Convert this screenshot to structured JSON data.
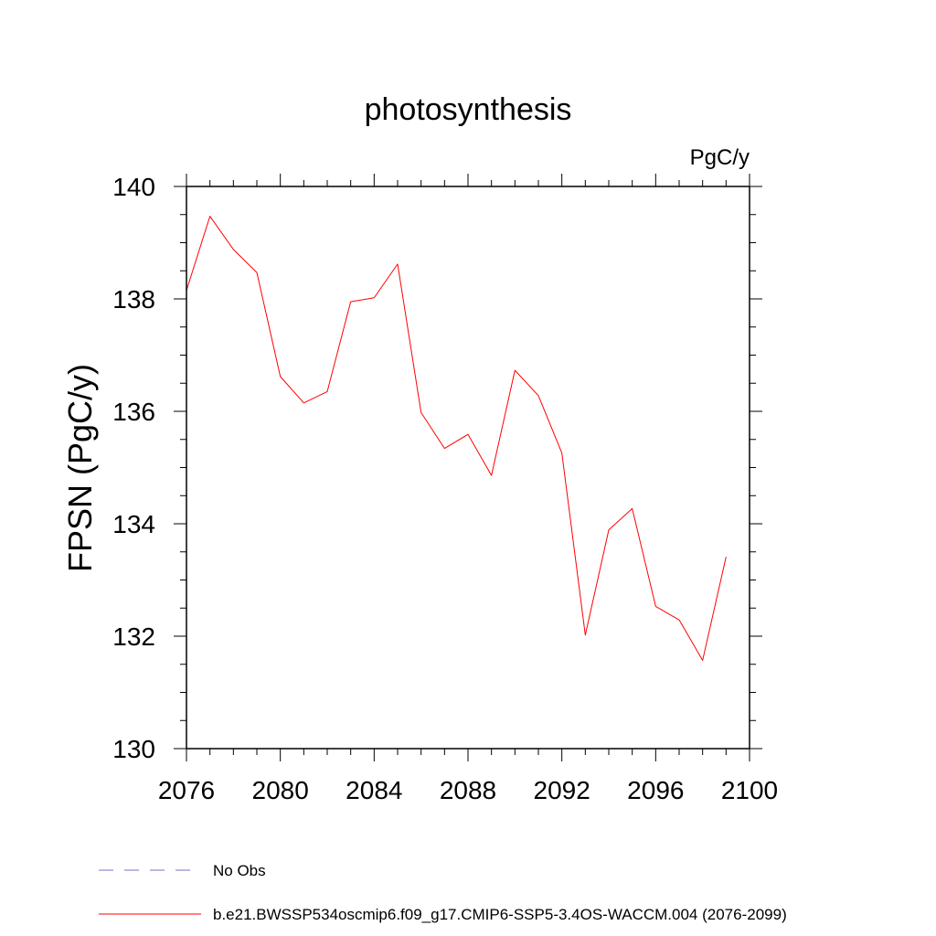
{
  "chart_data": {
    "type": "line",
    "title": "photosynthesis",
    "units": "PgC/y",
    "xlabel": "",
    "ylabel": "FPSN  (PgC/y)",
    "xlim": [
      2076,
      2100
    ],
    "ylim": [
      130,
      140
    ],
    "xticks": [
      2076,
      2080,
      2084,
      2088,
      2092,
      2096,
      2100
    ],
    "yticks": [
      130,
      132,
      134,
      136,
      138,
      140
    ],
    "legend_position": "bottom",
    "series": [
      {
        "name": "b.e21.BWSSP534oscmip6.f09_g17.CMIP6-SSP5-3.4OS-WACCM.004 (2076-2099)",
        "color": "#ff0000",
        "x": [
          2076,
          2077,
          2078,
          2079,
          2080,
          2081,
          2082,
          2083,
          2084,
          2085,
          2086,
          2087,
          2088,
          2089,
          2090,
          2091,
          2092,
          2093,
          2094,
          2095,
          2096,
          2097,
          2098,
          2099
        ],
        "y": [
          138.15,
          139.47,
          138.88,
          138.47,
          136.62,
          136.15,
          136.35,
          137.95,
          138.02,
          138.62,
          135.98,
          135.34,
          135.59,
          134.86,
          136.73,
          136.28,
          135.26,
          132.02,
          133.89,
          134.27,
          132.53,
          132.29,
          131.57,
          133.41
        ]
      }
    ],
    "legend": [
      {
        "label": "No Obs",
        "color": "#7a6fc8",
        "style": "dashed"
      },
      {
        "label": "b.e21.BWSSP534oscmip6.f09_g17.CMIP6-SSP5-3.4OS-WACCM.004 (2076-2099)",
        "color": "#ff0000",
        "style": "solid"
      }
    ]
  }
}
